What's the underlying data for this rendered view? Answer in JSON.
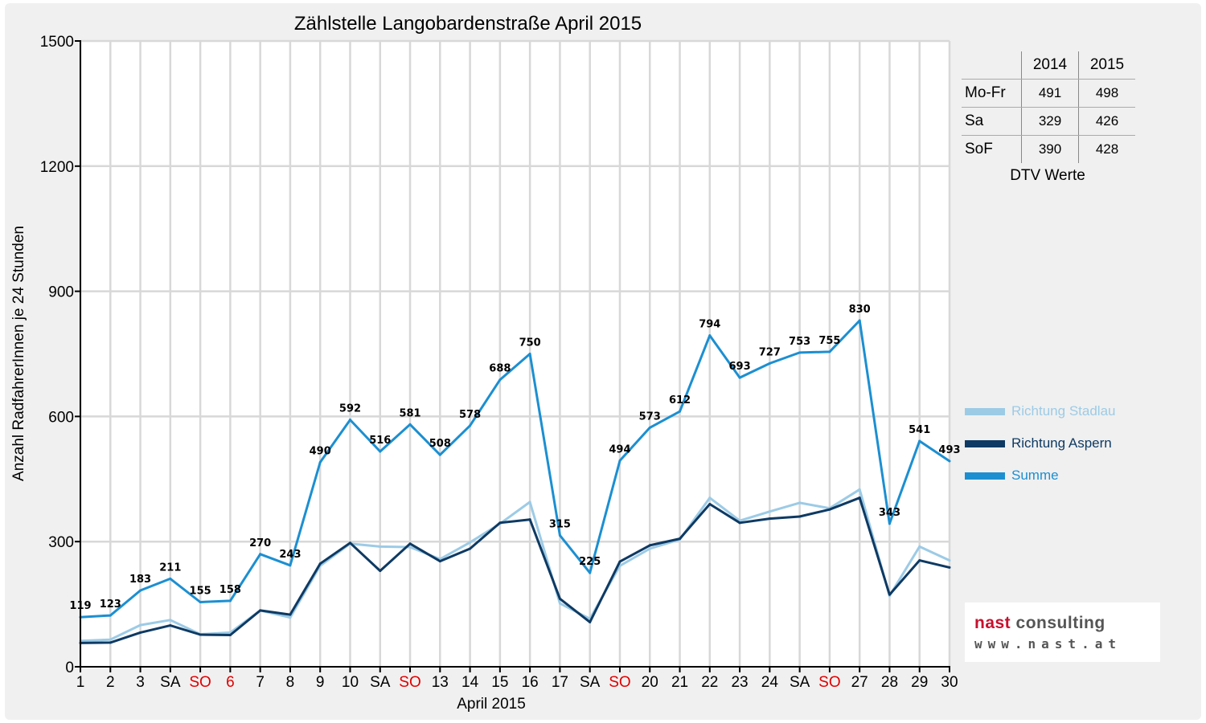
{
  "chart_data": {
    "type": "line",
    "title": "Zählstelle Langobardenstraße April 2015",
    "xlabel": "April 2015",
    "ylabel": "Anzahl RadfahrerInnen je 24 Stunden",
    "ylim": [
      0,
      1500
    ],
    "yticks": [
      "0",
      "300",
      "600",
      "900",
      "1200",
      "1500"
    ],
    "grid": true,
    "categories": [
      "1",
      "2",
      "3",
      "SA",
      "SO",
      "6",
      "7",
      "8",
      "9",
      "10",
      "SA",
      "SO",
      "13",
      "14",
      "15",
      "16",
      "17",
      "SA",
      "SO",
      "20",
      "21",
      "22",
      "23",
      "24",
      "SA",
      "SO",
      "27",
      "28",
      "29",
      "30"
    ],
    "red_categories": [
      4,
      5,
      11,
      18,
      25
    ],
    "series": [
      {
        "name": "Richtung Stadlau",
        "color": "#9ccbe6",
        "values": [
          62,
          65,
          100,
          112,
          78,
          82,
          135,
          118,
          242,
          295,
          288,
          287,
          258,
          298,
          343,
          395,
          152,
          115,
          242,
          283,
          305,
          405,
          350,
          372,
          393,
          380,
          425,
          170,
          288,
          255
        ]
      },
      {
        "name": "Richtung Aspern",
        "color": "#0e3a63",
        "values": [
          57,
          58,
          82,
          99,
          77,
          76,
          135,
          125,
          247,
          297,
          230,
          295,
          253,
          283,
          345,
          353,
          163,
          107,
          252,
          291,
          307,
          390,
          345,
          355,
          360,
          377,
          405,
          173,
          255,
          238
        ]
      },
      {
        "name": "Summe",
        "color": "#1c8fd1",
        "values": [
          119,
          123,
          183,
          211,
          155,
          158,
          270,
          243,
          490,
          592,
          516,
          581,
          508,
          578,
          688,
          750,
          315,
          225,
          494,
          573,
          612,
          794,
          693,
          727,
          753,
          755,
          830,
          343,
          541,
          493
        ],
        "labels": [
          "119",
          "123",
          "183",
          "211",
          "155",
          "158",
          "270",
          "243",
          "490",
          "592",
          "516",
          "581",
          "508",
          "578",
          "688",
          "750",
          "315",
          "225",
          "494",
          "573",
          "612",
          "794",
          "693",
          "727",
          "753",
          "755",
          "830",
          "343",
          "541",
          "493"
        ]
      }
    ],
    "legend_position": "right"
  },
  "dtv_table": {
    "header": [
      "2014",
      "2015"
    ],
    "rows": [
      {
        "label": "Mo-Fr",
        "v2014": "491",
        "v2015": "498"
      },
      {
        "label": "Sa",
        "v2014": "329",
        "v2015": "426"
      },
      {
        "label": "SoF",
        "v2014": "390",
        "v2015": "428"
      }
    ],
    "caption": "DTV Werte"
  },
  "logo": {
    "name_part1": "nast",
    "name_part2": " consulting",
    "url": "www.nast.at"
  }
}
